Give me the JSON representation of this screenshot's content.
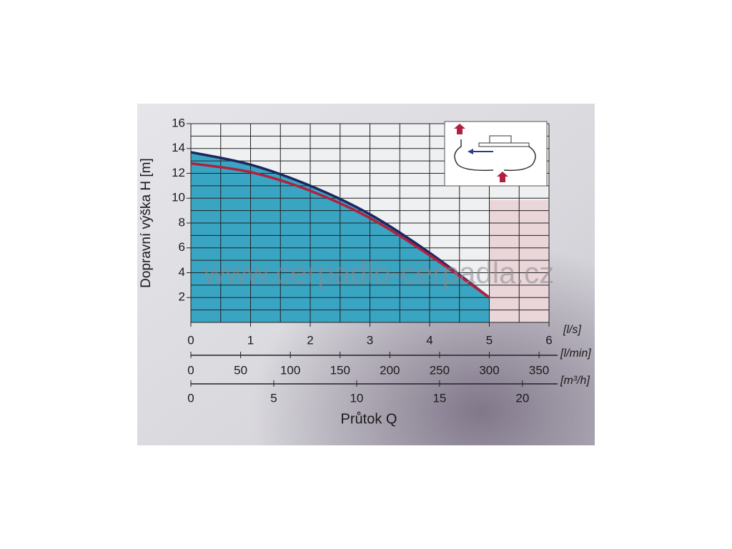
{
  "chart_data": {
    "type": "line",
    "watermark": "www.cerpadlo-cerpadla.cz",
    "y_label": "Dopravní výška H [m]",
    "x_title": "Průtok Q",
    "x_unit": "[l/s]",
    "x": [
      0,
      1,
      2,
      3,
      4,
      5
    ],
    "series": [
      {
        "color": "#1c2760",
        "values": [
          13.7,
          12.7,
          11.0,
          8.7,
          5.6,
          2.0
        ]
      },
      {
        "color": "#b0213f",
        "values": [
          12.8,
          12.1,
          10.6,
          8.4,
          5.4,
          2.0
        ]
      }
    ],
    "fill_color": "#3aa5c3",
    "xlim": [
      0,
      6
    ],
    "xticks": [
      0,
      1,
      2,
      3,
      4,
      5,
      6
    ],
    "ylim": [
      0,
      16
    ],
    "yticks": [
      2,
      4,
      6,
      8,
      10,
      12,
      14,
      16
    ],
    "x_gridlines": [
      0,
      0.5,
      1,
      1.5,
      2,
      2.5,
      3,
      3.5,
      4,
      4.5,
      5,
      5.5,
      6
    ],
    "y_gridlines": [
      0,
      1,
      2,
      3,
      4,
      5,
      6,
      7,
      8,
      9,
      10,
      11,
      12,
      13,
      14,
      15,
      16
    ],
    "x2_unit": "[l/min]",
    "x2lim": [
      0,
      360
    ],
    "x2ticks": [
      0,
      50,
      100,
      150,
      200,
      250,
      300,
      350
    ],
    "x3_unit": "[m³/h]",
    "x3lim": [
      0,
      21.6
    ],
    "x3ticks": [
      0,
      5,
      10,
      15,
      20
    ]
  }
}
